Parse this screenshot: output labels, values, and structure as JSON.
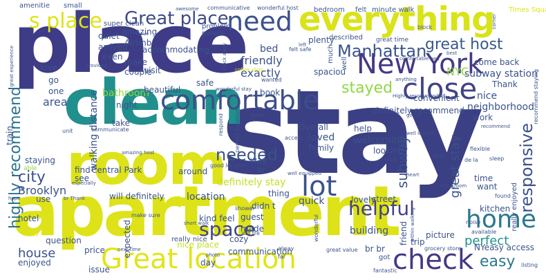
{
  "colors": {
    "background": "#ffffff",
    "dark_purple": "#3b3f83",
    "indigo": "#443983",
    "teal": "#21908d",
    "green": "#35b779",
    "lime": "#90d743",
    "yellow": "#dde318",
    "gold": "#fde725"
  },
  "words": {
    "stay": "stay",
    "place": "place",
    "clean": "clean",
    "apartment": "apartment",
    "room": "room",
    "everything": "everything",
    "great_location": "Great location",
    "new_york": "New York",
    "close": "close",
    "check": "check",
    "comfortable": "comfortable",
    "need": "need",
    "great_place": "Great place",
    "s_place": "s place",
    "lot": "lot",
    "home": "home",
    "highly_recommend": "highly recommend",
    "manhattan": "Manhattan",
    "great_host": "great host",
    "subway_station": "subway station",
    "nyc": "NYC",
    "stayed": "stayed",
    "helpful": "helpful",
    "responsive": "responsive",
    "needed": "needed",
    "space": "space",
    "perfect": "perfect",
    "easy": "easy",
    "city": "city",
    "brooklyn": "Brooklyn",
    "house": "house",
    "definitely_stay": "definitely stay",
    "great_stay": "great stay",
    "subway": "subway",
    "exactly": "exactly",
    "friendly": "friendly",
    "bed": "bed",
    "walking_distance": "walking distance",
    "neighborhood": "neighborhood",
    "nice": "nice",
    "definitely_recommend": "definitely recommend",
    "central_park": "Central Park",
    "kind_feel": "kind feel",
    "location": "location",
    "will_definitely": "will definitely",
    "guest": "guest",
    "made": "made",
    "communication": "communication",
    "really_nice": "really nice",
    "quick": "quick",
    "thing": "thing",
    "loved": "loved",
    "family": "family",
    "welcoming": "welcoming",
    "overall": "Overall",
    "bathroom": "bathroom",
    "night": "night",
    "area": "area",
    "one": "one",
    "staying": "staying",
    "beautiful": "beautiful",
    "make": "make",
    "couple": "couple",
    "safe": "safe",
    "book": "book",
    "convenient": "convenient",
    "thank": "Thank",
    "come_back": "come back",
    "work": "work",
    "time": "time",
    "want": "want",
    "kitchen": "kitchen",
    "really_enjoyed": "really enjoyed",
    "picture": "picture",
    "building": "building",
    "friend": "friend",
    "trip": "trip",
    "lovely": "lovely",
    "street": "street",
    "didn_t": "didn t",
    "cozy": "cozy",
    "day": "day",
    "price": "price",
    "question": "question",
    "enjoyed": "enjoyed",
    "hotel": "hotel",
    "use": "use",
    "find": "find",
    "see": "see",
    "expected": "expected",
    "nice_place": "nice place",
    "issue": "issue",
    "around": "around",
    "way": "way",
    "take": "take",
    "train": "train",
    "amazing": "amazing",
    "quiet": "quiet",
    "arrived": "arrived",
    "even": "even",
    "airbnb": "Airbnb",
    "accommodating": "accommodating",
    "visit": "visit",
    "super_clean": "super clean",
    "plenty": "plenty",
    "bedroom": "bedroom",
    "felt": "felt",
    "minute_walk": "minute walk",
    "described": "described",
    "much": "much",
    "well": "well",
    "spaciou": "spaciou",
    "go": "go",
    "love": "love",
    "amenitie": "amenitie",
    "small": "small",
    "times_square": "Times Square",
    "communicative": "communicative",
    "wonderful_host": "wonderful host",
    "problem": "problem",
    "people": "people",
    "great_time": "great time",
    "felt_safe": "felt safe",
    "block": "block",
    "comfortable_bed": "comfortable bed",
    "wanted": "wanted",
    "coffee_shop": "coffee shop",
    "wonderful_stay": "wonderful stay",
    "highly_recommended": "Highly recommended",
    "recommend_staying": "recommend staying",
    "respond": "respond",
    "perfect_location": "perfect location",
    "access": "access",
    "well_located": "well located",
    "good_location": "good location",
    "well_equipped": "well equipped",
    "help": "help",
    "looking": "looking",
    "back": "back",
    "door": "door",
    "br": "br",
    "communicate": "communicate",
    "amazing_host": "amazing host",
    "unit": "unit",
    "able": "able",
    "hope": "hope",
    "especially": "especially",
    "br_thank": "br Thank",
    "make_sure": "make sure",
    "short_walk": "short walk",
    "shower": "shower",
    "wonderful": "wonderful",
    "est_tre": "est tre",
    "br_br": "br br",
    "got": "got",
    "great_value": "great value",
    "grocery_store": "grocery store",
    "always": "alway",
    "far": "far",
    "photo": "photo",
    "next_time": "next time",
    "fantastic": "fantastic",
    "ny_easy_access": "NYeasy access",
    "available": "available",
    "noise": "noise",
    "living_room": "living room",
    "listing": "listing",
    "found": "found",
    "heart": "heart",
    "flexible": "flexible",
    "sleep": "sleep",
    "recommend": "recommend",
    "within_walking": "within walking",
    "de_la": "de la",
    "great_experience": "great experience",
    "provided": "provided",
    "awesome": "awesome",
    "left": "left",
    "best": "best",
    "corner": "corner",
    "block_away": "block away",
    "week": "week",
    "going": "going",
    "happy": "happy",
    "know": "know",
    "gave": "gave",
    "anything": "anything",
    "place_small": "place",
    "enjoy": "enjoy"
  }
}
